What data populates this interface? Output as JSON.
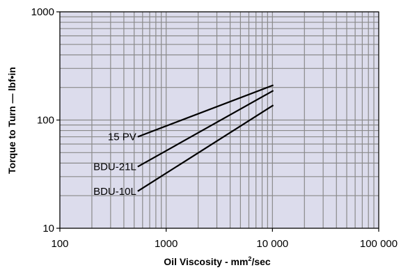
{
  "chart_data": {
    "type": "line",
    "title": "",
    "xlabel": "Oil Viscosity - mm",
    "xlabel_sup": "2",
    "xlabel_suffix": "/sec",
    "ylabel": "Torque to Turn  —  lbf•in",
    "x_scale": "log",
    "y_scale": "log",
    "xlim": [
      100,
      100000
    ],
    "ylim": [
      10,
      1000
    ],
    "x_ticks": [
      {
        "value": 100,
        "label": "100"
      },
      {
        "value": 1000,
        "label": "1000"
      },
      {
        "value": 10000,
        "label": "10 000"
      },
      {
        "value": 100000,
        "label": "100 000"
      }
    ],
    "y_ticks": [
      {
        "value": 10,
        "label": "10"
      },
      {
        "value": 100,
        "label": "100"
      },
      {
        "value": 1000,
        "label": "1000"
      }
    ],
    "grid": true,
    "series": [
      {
        "name": "15 PV",
        "x": [
          540,
          10200
        ],
        "y": [
          70,
          210
        ]
      },
      {
        "name": "BDU-21L",
        "x": [
          540,
          10200
        ],
        "y": [
          37,
          187
        ]
      },
      {
        "name": "BDU-10L",
        "x": [
          540,
          10200
        ],
        "y": [
          22,
          137
        ]
      }
    ],
    "colors": {
      "plot_background": "#dcdcec",
      "grid": "#8a8a8a",
      "line": "#000000"
    }
  }
}
